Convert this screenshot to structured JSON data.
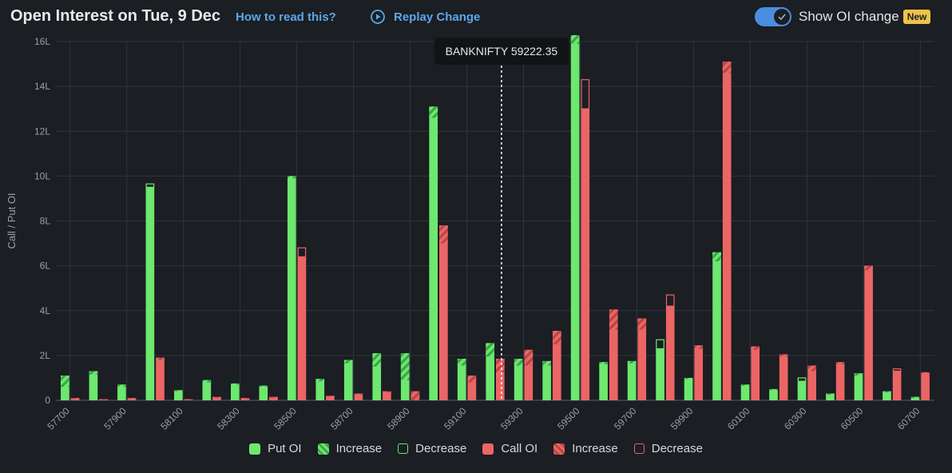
{
  "header": {
    "title": "Open Interest on Tue, 9 Dec",
    "how_to_read": "How to read this?",
    "replay_label": "Replay Change",
    "toggle_label": "Show OI change",
    "badge": "New"
  },
  "colors": {
    "put": "#6de86e",
    "put_dark": "#3aa64a",
    "call": "#ec6565",
    "call_dark": "#b84646",
    "accent": "#5aa7ea",
    "badge": "#f0c24a",
    "background": "#1b1e23"
  },
  "chart_data": {
    "type": "bar",
    "ylabel": "Call / Put OI",
    "xlabel": "",
    "ylim": [
      0,
      16
    ],
    "yticks": [
      "0",
      "2L",
      "4L",
      "6L",
      "8L",
      "10L",
      "12L",
      "14L",
      "16L"
    ],
    "grid": true,
    "legend_position": "bottom",
    "strikes": [
      57700,
      57800,
      57900,
      58000,
      58100,
      58200,
      58300,
      58400,
      58500,
      58600,
      58700,
      58800,
      58900,
      59000,
      59100,
      59200,
      59300,
      59400,
      59500,
      59600,
      59700,
      59800,
      59900,
      60000,
      60100,
      60200,
      60300,
      60400,
      60500,
      60600,
      60700
    ],
    "xtick_labels": [
      "57700",
      "57900",
      "58100",
      "58300",
      "58500",
      "58700",
      "58900",
      "59100",
      "59300",
      "59500",
      "59700",
      "59900",
      "60100",
      "60300",
      "60500",
      "60700"
    ],
    "spot": {
      "label": "BANKNIFTY 59222.35",
      "value": 59222.35
    },
    "series": [
      {
        "name": "Put OI",
        "values": [
          1.1,
          1.3,
          0.7,
          9.5,
          0.45,
          0.9,
          0.75,
          0.65,
          10.0,
          0.95,
          1.8,
          2.1,
          2.1,
          13.1,
          1.85,
          2.55,
          1.85,
          1.75,
          16.4,
          1.7,
          1.75,
          2.3,
          1.0,
          6.6,
          0.7,
          0.5,
          0.85,
          0.3,
          1.2,
          0.4,
          0.15
        ],
        "change": [
          0.5,
          0.15,
          0.1,
          -0.15,
          0.05,
          0.1,
          0.05,
          0.05,
          0.1,
          0.1,
          0.15,
          0.6,
          1.2,
          0.5,
          0.3,
          0.6,
          0.3,
          0.2,
          0.5,
          0.1,
          0.1,
          -0.4,
          0.05,
          0.4,
          0.05,
          0.05,
          -0.15,
          0.05,
          0.1,
          0.05,
          0.05
        ]
      },
      {
        "name": "Call OI",
        "values": [
          0.1,
          0.05,
          0.1,
          1.9,
          0.05,
          0.15,
          0.1,
          0.15,
          6.4,
          0.2,
          0.3,
          0.4,
          0.4,
          7.8,
          1.1,
          1.85,
          2.25,
          3.1,
          13.0,
          4.05,
          3.65,
          4.2,
          2.45,
          15.1,
          2.4,
          2.05,
          1.55,
          1.7,
          6.0,
          1.3,
          1.25
        ],
        "change": [
          0.02,
          0.01,
          0.02,
          0.1,
          0.01,
          0.02,
          0.01,
          0.02,
          -0.4,
          0.02,
          0.05,
          0.05,
          0.4,
          0.8,
          0.3,
          0.6,
          0.7,
          0.6,
          -1.3,
          0.9,
          0.5,
          -0.5,
          0.15,
          0.5,
          0.15,
          0.1,
          0.25,
          0.1,
          0.2,
          -0.1,
          0.05
        ]
      }
    ],
    "legend": [
      "Put OI",
      "Increase",
      "Decrease",
      "Call OI",
      "Increase",
      "Decrease"
    ]
  }
}
